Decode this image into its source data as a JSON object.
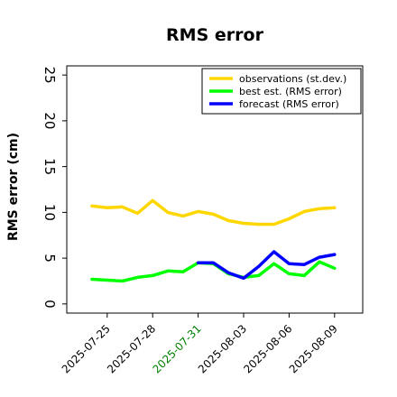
{
  "chart_data": {
    "type": "line",
    "title": "RMS error",
    "ylabel": "RMS error (cm)",
    "xlabel": "",
    "ylim": [
      -1,
      26
    ],
    "yticks": [
      0,
      5,
      10,
      15,
      20,
      25
    ],
    "grid": false,
    "legend_position": "top-right",
    "x": [
      "2025-07-24",
      "2025-07-25",
      "2025-07-26",
      "2025-07-27",
      "2025-07-28",
      "2025-07-29",
      "2025-07-30",
      "2025-07-31",
      "2025-08-01",
      "2025-08-02",
      "2025-08-03",
      "2025-08-04",
      "2025-08-05",
      "2025-08-06",
      "2025-08-07",
      "2025-08-08",
      "2025-08-09"
    ],
    "xticks": [
      {
        "label": "2025-07-25",
        "color": "#000000"
      },
      {
        "label": "2025-07-28",
        "color": "#000000"
      },
      {
        "label": "2025-07-31",
        "color": "#008000"
      },
      {
        "label": "2025-08-03",
        "color": "#000000"
      },
      {
        "label": "2025-08-06",
        "color": "#000000"
      },
      {
        "label": "2025-08-09",
        "color": "#000000"
      }
    ],
    "series": [
      {
        "name": "observations (st.dev.)",
        "color": "#ffd700",
        "values": [
          10.7,
          10.5,
          10.6,
          9.9,
          11.3,
          10.0,
          9.6,
          10.1,
          9.8,
          9.1,
          8.8,
          8.7,
          8.7,
          9.3,
          10.1,
          10.4,
          10.5
        ]
      },
      {
        "name": "best est. (RMS error)",
        "color": "#00ff00",
        "values": [
          2.7,
          2.6,
          2.5,
          2.9,
          3.1,
          3.6,
          3.5,
          4.5,
          4.4,
          3.3,
          2.9,
          3.1,
          4.4,
          3.3,
          3.1,
          4.6,
          3.9
        ]
      },
      {
        "name": "forecast (RMS error)",
        "color": "#0000ff",
        "values": [
          null,
          null,
          null,
          null,
          null,
          null,
          null,
          4.5,
          4.5,
          3.4,
          2.8,
          4.1,
          5.7,
          4.4,
          4.3,
          5.1,
          5.4
        ]
      }
    ]
  }
}
